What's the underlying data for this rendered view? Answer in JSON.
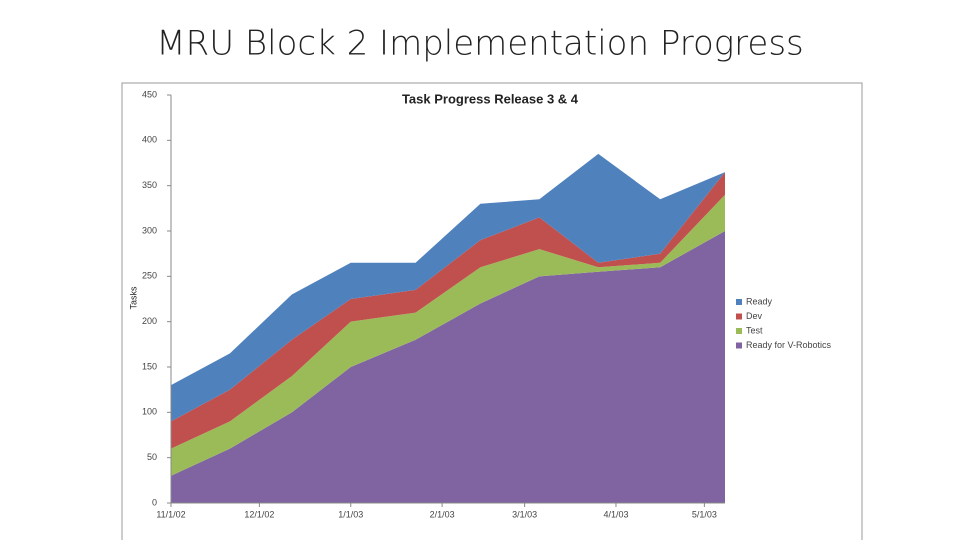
{
  "slide_title": "MRU Block 2 Implementation Progress",
  "chart_data": {
    "type": "stacked_area",
    "title": "Task Progress Release 3 & 4",
    "y_label": "Tasks",
    "x": [
      0,
      20,
      41,
      61,
      83,
      105,
      125,
      145,
      166,
      188
    ],
    "xlim": [
      0,
      188
    ],
    "xticks": [
      {
        "value": 0,
        "label": "11/1/02"
      },
      {
        "value": 30,
        "label": "12/1/02"
      },
      {
        "value": 61,
        "label": "1/1/03"
      },
      {
        "value": 92,
        "label": "2/1/03"
      },
      {
        "value": 120,
        "label": "3/1/03"
      },
      {
        "value": 151,
        "label": "4/1/03"
      },
      {
        "value": 181,
        "label": "5/1/03"
      }
    ],
    "ylim": [
      0,
      450
    ],
    "yticks": [
      0,
      50,
      100,
      150,
      200,
      250,
      300,
      350,
      400,
      450
    ],
    "legend": "right",
    "series": [
      {
        "name": "Ready",
        "color": "#4f81bd",
        "values": [
          40,
          40,
          50,
          40,
          30,
          40,
          20,
          120,
          60,
          0
        ]
      },
      {
        "name": "Dev",
        "color": "#c0504d",
        "values": [
          30,
          35,
          40,
          25,
          25,
          30,
          35,
          5,
          10,
          25
        ]
      },
      {
        "name": "Test",
        "color": "#9bbb59",
        "values": [
          30,
          30,
          40,
          50,
          30,
          40,
          30,
          5,
          5,
          40
        ]
      },
      {
        "name": "Ready for V-Robotics",
        "color": "#8064a2",
        "values": [
          30,
          60,
          100,
          150,
          180,
          220,
          250,
          255,
          260,
          300
        ]
      }
    ]
  }
}
